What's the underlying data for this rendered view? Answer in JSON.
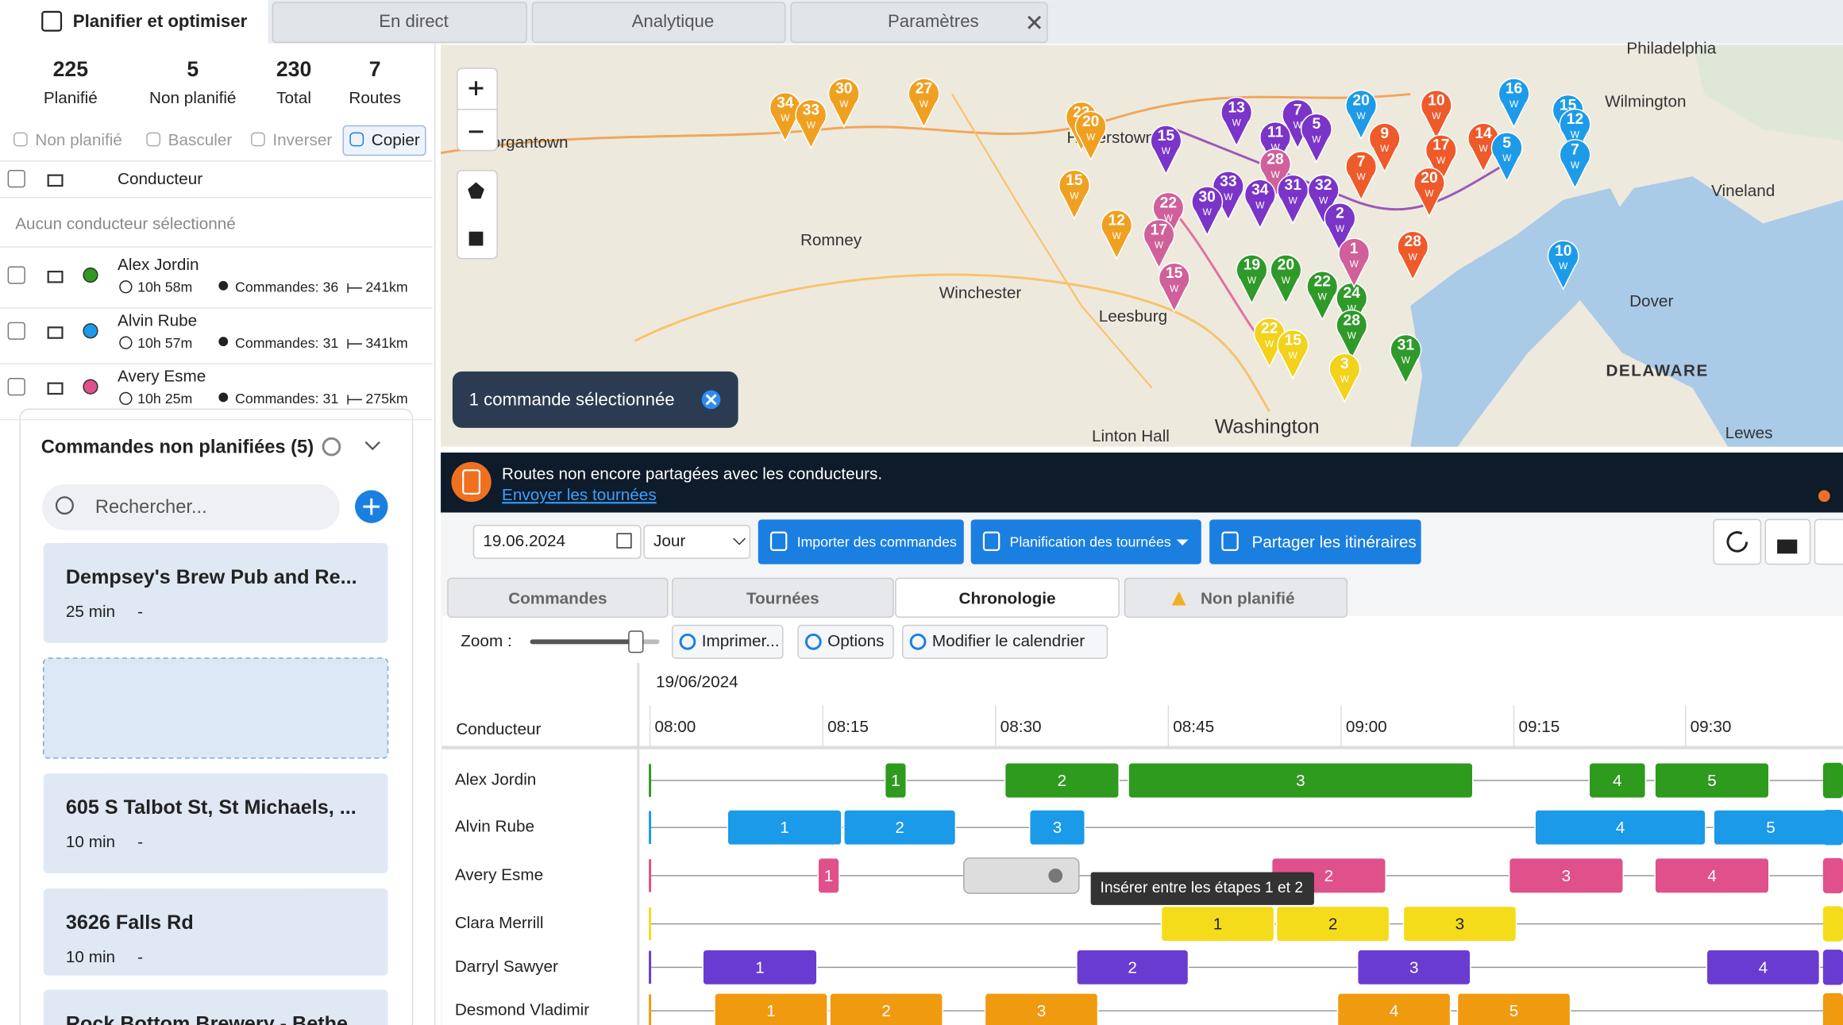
{
  "tabs": [
    "Planifier et optimiser",
    "En direct",
    "Analytique",
    "Paramètres"
  ],
  "stats": [
    {
      "value": 225,
      "label": "Planifié"
    },
    {
      "value": 5,
      "label": "Non planifié"
    },
    {
      "value": 230,
      "label": "Total"
    },
    {
      "value": 7,
      "label": "Routes"
    }
  ],
  "toolbar": [
    "Non planifié",
    "Basculer",
    "Inverser",
    "Copier"
  ],
  "driver_header": "Conducteur",
  "no_driver": "Aucun conducteur sélectionné",
  "drivers": [
    {
      "name": "Alex Jordin",
      "time": "10h 58m",
      "orders": "Commandes: 36",
      "distance": "241km",
      "color": "#2e9a1e"
    },
    {
      "name": "Alvin Rube",
      "time": "10h 57m",
      "orders": "Commandes: 31",
      "distance": "341km",
      "color": "#1a9ae8"
    },
    {
      "name": "Avery Esme",
      "time": "10h 25m",
      "orders": "Commandes: 31",
      "distance": "275km",
      "color": "#e0508a"
    }
  ],
  "unplanned": {
    "title": "Commandes non planifiées (5)",
    "search": "Rechercher...",
    "items": [
      {
        "name": "Dempsey's Brew Pub and Re...",
        "duration": "25 min",
        "extra": "-"
      },
      {
        "name": "605 S Talbot St, St Michaels, ...",
        "duration": "10 min",
        "extra": "-"
      },
      {
        "name": "3626 Falls Rd",
        "duration": "10 min",
        "extra": "-"
      },
      {
        "name": "Rock Bottom Brewery - Bethe..."
      }
    ]
  },
  "map": {
    "places": [
      "Philadelphia",
      "organtown",
      "Hagerstown",
      "Romney",
      "Winchester",
      "Leesburg",
      "Washington",
      "Wilmington",
      "Vineland",
      "Dover",
      "DELAWARE",
      "Lewes",
      "Linton Hall"
    ],
    "pin_sublabel": "W",
    "pins": [
      {
        "label": 34,
        "color": "#f0a020"
      },
      {
        "label": 33,
        "color": "#f0a020"
      },
      {
        "label": 30,
        "color": "#f0a020"
      },
      {
        "label": 27,
        "color": "#f0a020"
      },
      {
        "label": 23,
        "color": "#f0a020"
      },
      {
        "label": 20,
        "color": "#f0a020"
      },
      {
        "label": 15,
        "color": "#f0a020"
      },
      {
        "label": 12,
        "color": "#f0a020"
      },
      {
        "label": 15,
        "color": "#7a35c8"
      },
      {
        "label": 13,
        "color": "#7a35c8"
      },
      {
        "label": 7,
        "color": "#7a35c8"
      },
      {
        "label": 11,
        "color": "#7a35c8"
      },
      {
        "label": 5,
        "color": "#7a35c8"
      },
      {
        "label": 20,
        "color": "#1e9be8"
      },
      {
        "label": 10,
        "color": "#ee5a2a"
      },
      {
        "label": 9,
        "color": "#ee5a2a"
      },
      {
        "label": 7,
        "color": "#ee5a2a"
      },
      {
        "label": 14,
        "color": "#ee5a2a"
      },
      {
        "label": 17,
        "color": "#ee5a2a"
      },
      {
        "label": 16,
        "color": "#1e9be8"
      },
      {
        "label": 15,
        "color": "#1e9be8"
      },
      {
        "label": 12,
        "color": "#1e9be8"
      },
      {
        "label": 7,
        "color": "#1e9be8"
      },
      {
        "label": 5,
        "color": "#1e9be8"
      },
      {
        "label": 10,
        "color": "#1e9be8"
      },
      {
        "label": 20,
        "color": "#ee5a2a"
      },
      {
        "label": 28,
        "color": "#ee5a2a"
      },
      {
        "label": 28,
        "color": "#d0609a"
      },
      {
        "label": 33,
        "color": "#7a35c8"
      },
      {
        "label": 30,
        "color": "#7a35c8"
      },
      {
        "label": 34,
        "color": "#7a35c8"
      },
      {
        "label": 31,
        "color": "#7a35c8"
      },
      {
        "label": 32,
        "color": "#7a35c8"
      },
      {
        "label": 22,
        "color": "#d0609a"
      },
      {
        "label": 17,
        "color": "#d0609a"
      },
      {
        "label": 15,
        "color": "#d0609a"
      },
      {
        "label": 19,
        "color": "#2f9a2a"
      },
      {
        "label": 20,
        "color": "#2f9a2a"
      },
      {
        "label": 22,
        "color": "#2f9a2a"
      },
      {
        "label": 24,
        "color": "#2f9a2a"
      },
      {
        "label": 28,
        "color": "#2f9a2a"
      },
      {
        "label": 31,
        "color": "#2f9a2a"
      },
      {
        "label": 22,
        "color": "#f2d21a"
      },
      {
        "label": 15,
        "color": "#f2d21a"
      },
      {
        "label": 3,
        "color": "#f2d21a"
      },
      {
        "label": 2,
        "color": "#7a35c8"
      },
      {
        "label": 1,
        "color": "#d0609a"
      }
    ],
    "selection": "1 commande sélectionnée"
  },
  "banner": {
    "text": "Routes non encore partagées avec les conducteurs.",
    "link": "Envoyer les tournées"
  },
  "controls": {
    "date": "19.06.2024",
    "view": "Jour",
    "buttons": [
      "Importer des commandes",
      "Planification des tournées",
      "Partager les itinéraires"
    ]
  },
  "subtabs": [
    "Commandes",
    "Tournées",
    "Chronologie",
    "Non planifié"
  ],
  "timeline_toolbar": {
    "zoom": "Zoom :",
    "buttons": [
      "Imprimer...",
      "Options",
      "Modifier le calendrier"
    ]
  },
  "timeline": {
    "date": "19/06/2024",
    "header": "Conducteur",
    "times": [
      "08:00",
      "08:15",
      "08:30",
      "08:45",
      "09:00",
      "09:15",
      "09:30"
    ],
    "rows": [
      {
        "name": "Alex Jordin",
        "color": "#2e9a1e",
        "blocks": [
          1,
          2,
          3,
          4,
          5
        ]
      },
      {
        "name": "Alvin Rube",
        "color": "#1a9ae8",
        "blocks": [
          1,
          2,
          3,
          4,
          5
        ]
      },
      {
        "name": "Avery Esme",
        "color": "#e0508a",
        "blocks": [
          1,
          2,
          3,
          4
        ]
      },
      {
        "name": "Clara Merrill",
        "color": "#f5dc1a",
        "blocks": [
          1,
          2,
          3
        ]
      },
      {
        "name": "Darryl Sawyer",
        "color": "#6a3bd0",
        "blocks": [
          1,
          2,
          3,
          4
        ]
      },
      {
        "name": "Desmond Vladimir",
        "color": "#f09a10",
        "blocks": [
          1,
          2,
          3,
          4,
          5
        ]
      }
    ],
    "tooltip": "Insérer entre les étapes 1 et 2"
  }
}
